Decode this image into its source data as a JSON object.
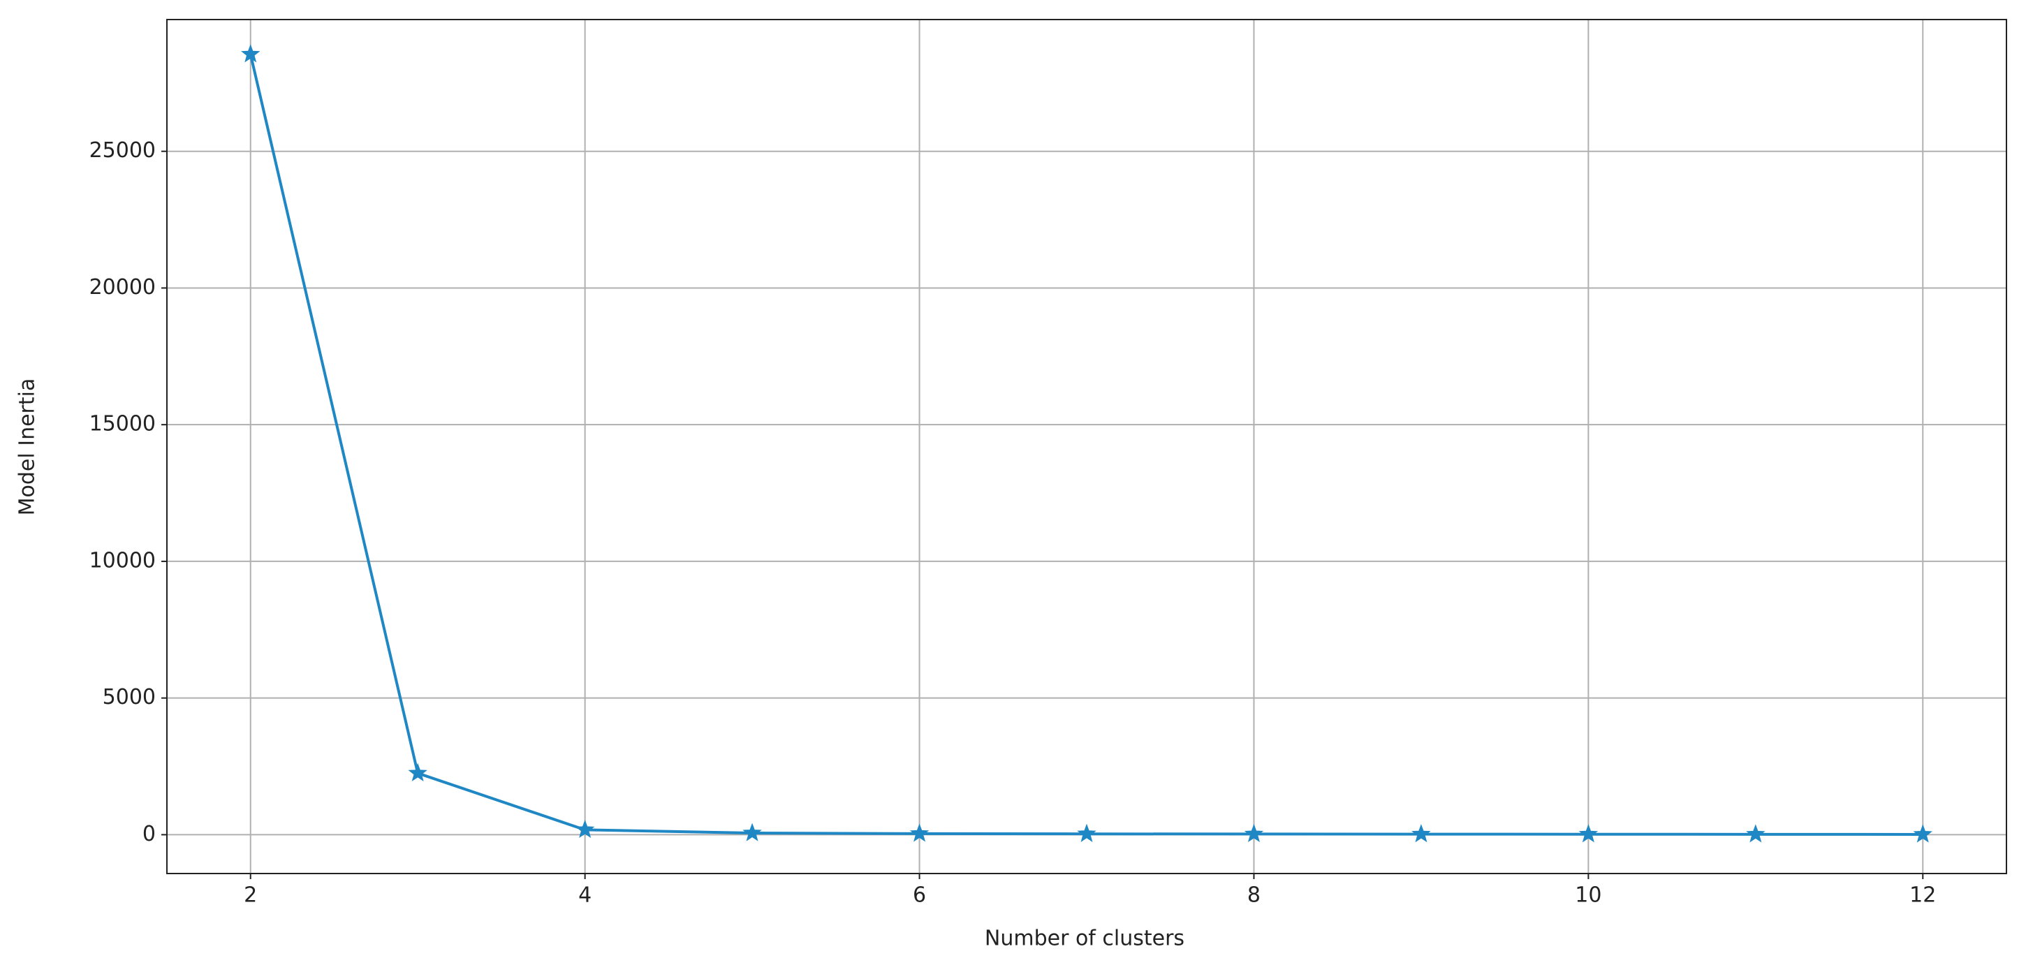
{
  "chart_data": {
    "type": "line",
    "x_label": "Number of clusters",
    "y_label": "Model Inertia",
    "x": [
      2,
      3,
      4,
      5,
      6,
      7,
      8,
      9,
      10,
      11,
      12
    ],
    "series": [
      {
        "color": "#1f87c4",
        "values": [
          28550,
          2250,
          180,
          60,
          40,
          30,
          25,
          20,
          18,
          15,
          12
        ]
      }
    ],
    "xlim": [
      1.5,
      12.5
    ],
    "ylim": [
      -1420,
      29820
    ],
    "xticks": [
      2,
      4,
      6,
      8,
      10,
      12
    ],
    "yticks": [
      0,
      5000,
      10000,
      15000,
      20000,
      25000
    ],
    "grid": true,
    "marker": "star"
  }
}
